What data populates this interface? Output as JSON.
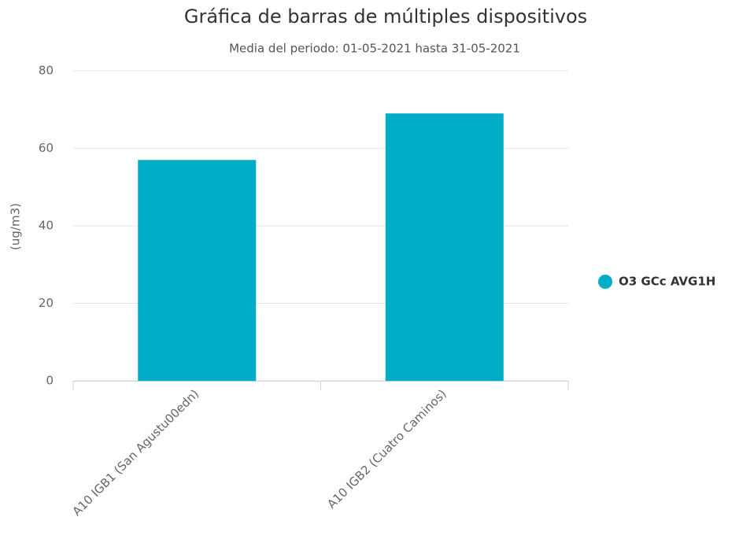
{
  "chart_data": {
    "type": "bar",
    "title": "Gráfica de barras de múltiples dispositivos",
    "subtitle": "Media del periodo: 01-05-2021 hasta 31-05-2021",
    "y_label": "(ug/m3)",
    "categories": [
      "A10 IGB1 (San Agustu00edn)",
      "A10 IGB2 (Cuatro Caminos)"
    ],
    "series": [
      {
        "name": "O3 GCc AVG1H",
        "color": "#00adc6",
        "values": [
          57,
          69
        ]
      }
    ],
    "ylim": [
      0,
      80
    ],
    "yticks": [
      0,
      20,
      40,
      60,
      80
    ],
    "grid": true,
    "legend": "right"
  }
}
